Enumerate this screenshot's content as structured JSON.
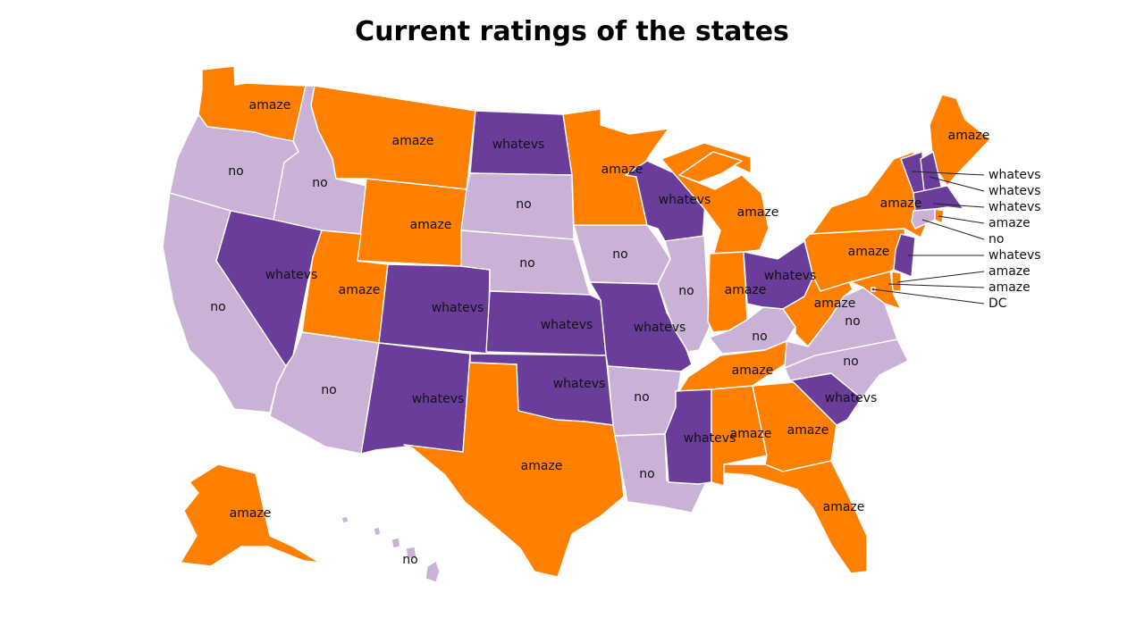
{
  "title": "Current ratings of the states",
  "legend_colors": {
    "amaze": "#ff7f00",
    "whatevs": "#6a3d9a",
    "no": "#cab2d6"
  },
  "states": [
    {
      "id": "WA",
      "rating": "amaze"
    },
    {
      "id": "OR",
      "rating": "no"
    },
    {
      "id": "CA",
      "rating": "no"
    },
    {
      "id": "ID",
      "rating": "no"
    },
    {
      "id": "NV",
      "rating": "whatevs"
    },
    {
      "id": "MT",
      "rating": "amaze"
    },
    {
      "id": "WY",
      "rating": "amaze"
    },
    {
      "id": "UT",
      "rating": "amaze"
    },
    {
      "id": "AZ",
      "rating": "no"
    },
    {
      "id": "CO",
      "rating": "whatevs"
    },
    {
      "id": "NM",
      "rating": "whatevs"
    },
    {
      "id": "ND",
      "rating": "whatevs"
    },
    {
      "id": "SD",
      "rating": "no"
    },
    {
      "id": "NE",
      "rating": "no"
    },
    {
      "id": "KS",
      "rating": "whatevs"
    },
    {
      "id": "OK",
      "rating": "whatevs"
    },
    {
      "id": "TX",
      "rating": "amaze"
    },
    {
      "id": "MN",
      "rating": "amaze"
    },
    {
      "id": "IA",
      "rating": "no"
    },
    {
      "id": "MO",
      "rating": "whatevs"
    },
    {
      "id": "AR",
      "rating": "no"
    },
    {
      "id": "LA",
      "rating": "no"
    },
    {
      "id": "WI",
      "rating": "whatevs"
    },
    {
      "id": "IL",
      "rating": "no"
    },
    {
      "id": "MI",
      "rating": "amaze"
    },
    {
      "id": "IN",
      "rating": "amaze"
    },
    {
      "id": "OH",
      "rating": "whatevs"
    },
    {
      "id": "KY",
      "rating": "no"
    },
    {
      "id": "TN",
      "rating": "amaze"
    },
    {
      "id": "MS",
      "rating": "whatevs"
    },
    {
      "id": "AL",
      "rating": "amaze"
    },
    {
      "id": "GA",
      "rating": "amaze"
    },
    {
      "id": "FL",
      "rating": "amaze"
    },
    {
      "id": "SC",
      "rating": "whatevs"
    },
    {
      "id": "NC",
      "rating": "no"
    },
    {
      "id": "VA",
      "rating": "no"
    },
    {
      "id": "WV",
      "rating": "amaze"
    },
    {
      "id": "PA",
      "rating": "amaze"
    },
    {
      "id": "NY",
      "rating": "amaze"
    },
    {
      "id": "ME",
      "rating": "amaze"
    },
    {
      "id": "AK",
      "rating": "amaze"
    },
    {
      "id": "HI",
      "rating": "no"
    },
    {
      "id": "VT",
      "rating": "whatevs"
    },
    {
      "id": "NH",
      "rating": "whatevs"
    },
    {
      "id": "MA",
      "rating": "whatevs"
    },
    {
      "id": "RI",
      "rating": "amaze"
    },
    {
      "id": "CT",
      "rating": "no"
    },
    {
      "id": "NJ",
      "rating": "whatevs"
    },
    {
      "id": "DE",
      "rating": "amaze"
    },
    {
      "id": "MD",
      "rating": "amaze"
    },
    {
      "id": "DC",
      "rating": "DC"
    }
  ]
}
